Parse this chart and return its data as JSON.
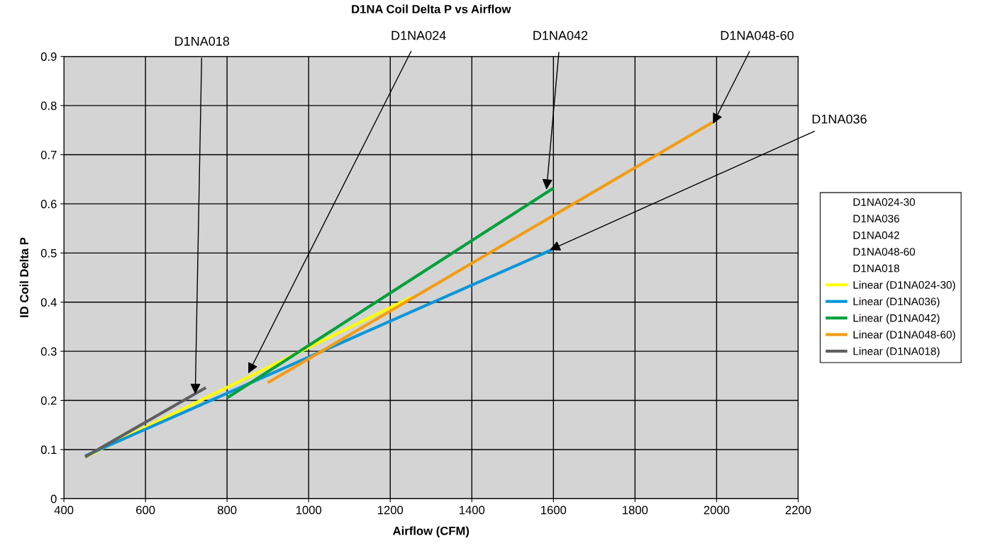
{
  "chart_data": {
    "type": "line",
    "title": "D1NA Coil Delta P vs Airflow",
    "xlabel": "Airflow (CFM)",
    "ylabel": "ID Coil Delta P",
    "xlim": [
      400,
      2200
    ],
    "xticks": [
      400,
      600,
      800,
      1000,
      1200,
      1400,
      1600,
      1800,
      2000,
      2200
    ],
    "ylim": [
      0,
      0.9
    ],
    "yticks": [
      0,
      0.1,
      0.2,
      0.3,
      0.4,
      0.5,
      0.6,
      0.7,
      0.8,
      0.9
    ],
    "grid": true,
    "legend": "right",
    "marker": "none",
    "line_style": "solid",
    "series": [
      {
        "name": "D1NA024-30",
        "type": "scatter"
      },
      {
        "name": "D1NA036",
        "type": "scatter"
      },
      {
        "name": "D1NA042",
        "type": "scatter"
      },
      {
        "name": "D1NA048-60",
        "type": "scatter"
      },
      {
        "name": "D1NA018",
        "type": "scatter"
      },
      {
        "name": "Linear (D1NA024-30)",
        "color": "#ffff00",
        "x": [
          452,
          1252
        ],
        "values": [
          0.085,
          0.41
        ]
      },
      {
        "name": "Linear (D1NA036)",
        "color": "#0a96d8",
        "x": [
          452,
          1600
        ],
        "values": [
          0.087,
          0.508
        ]
      },
      {
        "name": "Linear (D1NA042)",
        "color": "#00a03c",
        "x": [
          800,
          1600
        ],
        "values": [
          0.205,
          0.632
        ]
      },
      {
        "name": "Linear (D1NA048-60)",
        "color": "#f39c12",
        "x": [
          900,
          1990
        ],
        "values": [
          0.236,
          0.766
        ]
      },
      {
        "name": "Linear (D1NA018)",
        "color": "#5f5f5f",
        "x": [
          452,
          748
        ],
        "values": [
          0.085,
          0.226
        ]
      }
    ],
    "annotations": [
      {
        "text": "D1NA018",
        "x": 722,
        "y": 0.213
      },
      {
        "text": "D1NA024",
        "x": 852,
        "y": 0.255
      },
      {
        "text": "D1NA042",
        "x": 1583,
        "y": 0.629
      },
      {
        "text": "D1NA048-60",
        "x": 1991,
        "y": 0.763
      },
      {
        "text": "D1NA036",
        "x": 1591,
        "y": 0.506
      }
    ]
  }
}
